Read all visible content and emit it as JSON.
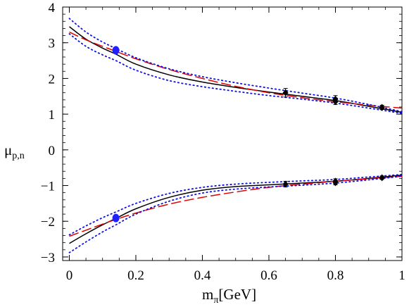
{
  "chart_data": {
    "type": "line",
    "title": "",
    "xlabel": {
      "main": "m",
      "sub": "π",
      "suffix": "[GeV]"
    },
    "ylabel": {
      "main": "μ",
      "sub": "p,n"
    },
    "xlim": [
      -0.02,
      1.0
    ],
    "ylim": [
      -3.1,
      4.0
    ],
    "x_ticks": [
      {
        "value": 0,
        "label": "0"
      },
      {
        "value": 0.2,
        "label": "0.2"
      },
      {
        "value": 0.4,
        "label": "0.4"
      },
      {
        "value": 0.6,
        "label": "0.6"
      },
      {
        "value": 0.8,
        "label": "0.8"
      },
      {
        "value": 1.0,
        "label": "1"
      }
    ],
    "y_ticks": [
      {
        "value": 4,
        "label": "4"
      },
      {
        "value": 3,
        "label": "3"
      },
      {
        "value": 2,
        "label": "2"
      },
      {
        "value": 1,
        "label": "1"
      },
      {
        "value": 0,
        "label": "0"
      },
      {
        "value": -1,
        "label": "−1"
      },
      {
        "value": -2,
        "label": "−2"
      },
      {
        "value": -3,
        "label": "−3"
      }
    ],
    "grid": false,
    "series": [
      {
        "group": "proton",
        "style": "solid",
        "color": "#000000",
        "x": [
          0,
          0.05,
          0.1,
          0.14,
          0.2,
          0.3,
          0.4,
          0.5,
          0.6,
          0.7,
          0.8,
          0.9,
          1.0
        ],
        "y": [
          3.45,
          3.1,
          2.85,
          2.68,
          2.4,
          2.1,
          1.9,
          1.75,
          1.62,
          1.5,
          1.38,
          1.22,
          1.05
        ]
      },
      {
        "group": "proton",
        "style": "dashed",
        "color": "#e00000",
        "x": [
          0,
          0.05,
          0.1,
          0.14,
          0.2,
          0.3,
          0.4,
          0.5,
          0.6,
          0.7,
          0.8,
          0.9,
          1.0
        ],
        "y": [
          3.3,
          3.08,
          2.9,
          2.76,
          2.55,
          2.25,
          2.0,
          1.78,
          1.6,
          1.46,
          1.35,
          1.25,
          1.17
        ]
      },
      {
        "group": "proton",
        "style": "dotted-upper",
        "color": "#1010e0",
        "x": [
          0,
          0.05,
          0.1,
          0.14,
          0.2,
          0.3,
          0.4,
          0.5,
          0.6,
          0.7,
          0.8,
          0.9,
          1.0
        ],
        "y": [
          3.68,
          3.3,
          3.02,
          2.84,
          2.58,
          2.27,
          2.05,
          1.88,
          1.73,
          1.59,
          1.45,
          1.27,
          1.07
        ]
      },
      {
        "group": "proton",
        "style": "dotted-lower",
        "color": "#1010e0",
        "x": [
          0,
          0.05,
          0.1,
          0.14,
          0.2,
          0.3,
          0.4,
          0.5,
          0.6,
          0.7,
          0.8,
          0.9,
          1.0
        ],
        "y": [
          3.25,
          2.9,
          2.66,
          2.5,
          2.23,
          1.94,
          1.77,
          1.64,
          1.52,
          1.42,
          1.31,
          1.17,
          1.02
        ]
      },
      {
        "group": "neutron",
        "style": "solid",
        "color": "#000000",
        "x": [
          0,
          0.05,
          0.1,
          0.14,
          0.2,
          0.3,
          0.4,
          0.5,
          0.6,
          0.7,
          0.8,
          0.9,
          1.0
        ],
        "y": [
          -2.62,
          -2.35,
          -2.1,
          -1.92,
          -1.65,
          -1.33,
          -1.13,
          -1.03,
          -0.98,
          -0.93,
          -0.88,
          -0.8,
          -0.71
        ]
      },
      {
        "group": "neutron",
        "style": "dashed",
        "color": "#e00000",
        "x": [
          0,
          0.05,
          0.1,
          0.14,
          0.2,
          0.3,
          0.4,
          0.5,
          0.6,
          0.7,
          0.8,
          0.9,
          1.0
        ],
        "y": [
          -2.42,
          -2.25,
          -2.08,
          -1.95,
          -1.77,
          -1.52,
          -1.33,
          -1.18,
          -1.05,
          -0.96,
          -0.88,
          -0.81,
          -0.74
        ]
      },
      {
        "group": "neutron",
        "style": "dotted-upper",
        "color": "#1010e0",
        "x": [
          0,
          0.05,
          0.1,
          0.14,
          0.2,
          0.3,
          0.4,
          0.5,
          0.6,
          0.7,
          0.8,
          0.9,
          1.0
        ],
        "y": [
          -2.38,
          -2.13,
          -1.9,
          -1.74,
          -1.5,
          -1.22,
          -1.05,
          -0.96,
          -0.91,
          -0.87,
          -0.83,
          -0.76,
          -0.69
        ]
      },
      {
        "group": "neutron",
        "style": "dotted-lower",
        "color": "#1010e0",
        "x": [
          0,
          0.05,
          0.1,
          0.14,
          0.2,
          0.3,
          0.4,
          0.5,
          0.6,
          0.7,
          0.8,
          0.9,
          1.0
        ],
        "y": [
          -2.88,
          -2.58,
          -2.3,
          -2.1,
          -1.8,
          -1.44,
          -1.21,
          -1.1,
          -1.04,
          -0.99,
          -0.93,
          -0.84,
          -0.74
        ]
      }
    ],
    "experimental_points": [
      {
        "x": 0.14,
        "y": 2.79,
        "color": "#2020ff"
      },
      {
        "x": 0.14,
        "y": -1.91,
        "color": "#2020ff"
      }
    ],
    "lattice_points": [
      {
        "x": 0.65,
        "y": 1.6,
        "err": 0.12
      },
      {
        "x": 0.8,
        "y": 1.42,
        "err": 0.1
      },
      {
        "x": 0.8,
        "y": 1.35,
        "err": 0.08
      },
      {
        "x": 0.94,
        "y": 1.19,
        "err": 0.06
      },
      {
        "x": 0.65,
        "y": -0.96,
        "err": 0.08
      },
      {
        "x": 0.8,
        "y": -0.88,
        "err": 0.07
      },
      {
        "x": 0.8,
        "y": -0.92,
        "err": 0.06
      },
      {
        "x": 0.94,
        "y": -0.78,
        "err": 0.05
      }
    ]
  }
}
